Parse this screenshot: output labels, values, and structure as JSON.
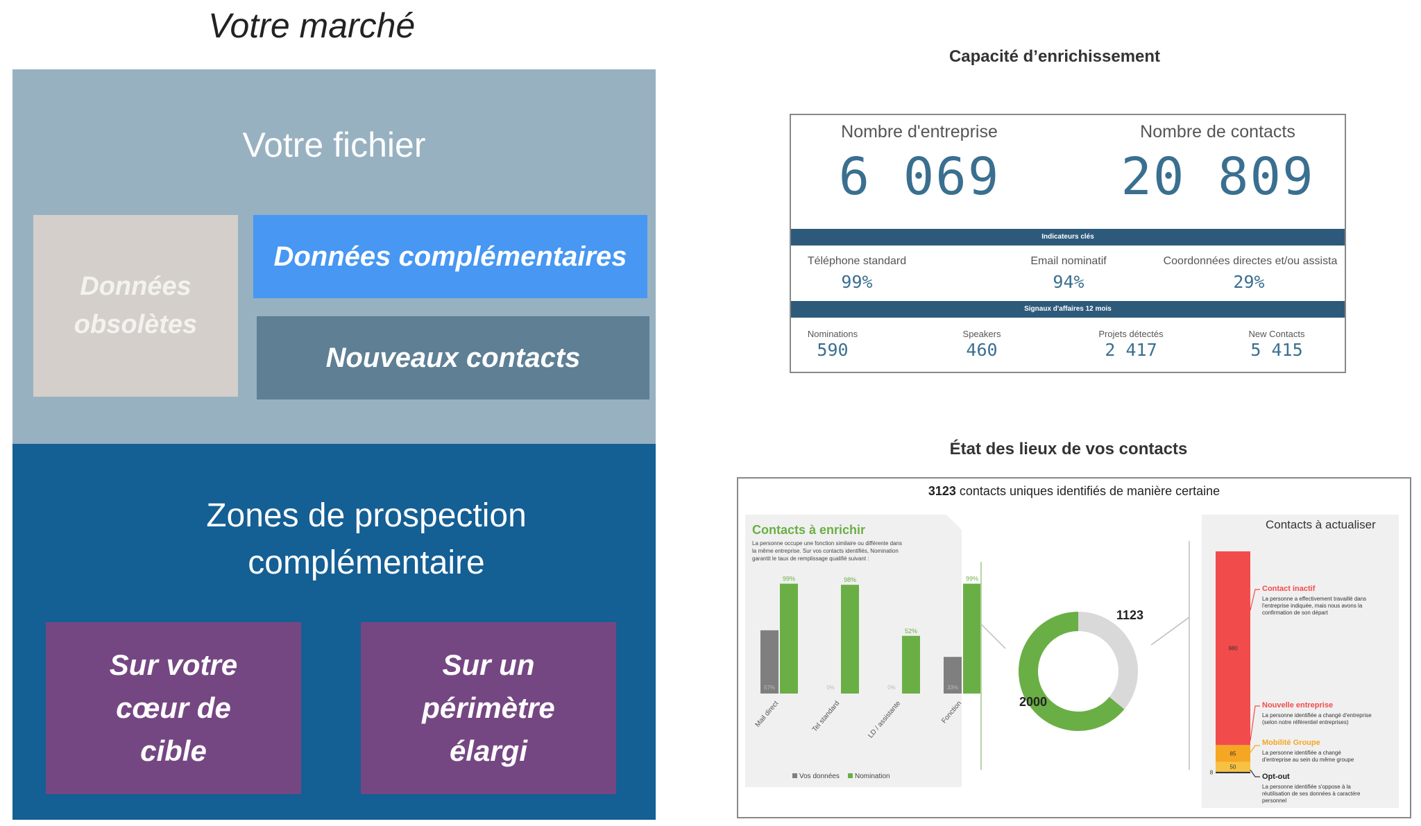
{
  "market": {
    "title": "Votre marché",
    "file_title": "Votre fichier",
    "obsolete_line1": "Données",
    "obsolete_line2": "obsolètes",
    "complementary": "Données complémentaires",
    "new_contacts": "Nouveaux contacts",
    "prospect_line1": "Zones de prospection",
    "prospect_line2": "complémentaire",
    "target_core": [
      "Sur votre",
      "cœur de",
      "cible"
    ],
    "target_wide": [
      "Sur un",
      "périmètre",
      "élargi"
    ]
  },
  "enrichment": {
    "title": "Capacité d’enrichissement",
    "companies_label": "Nombre d'entreprise",
    "companies_value": "6 069",
    "contacts_label": "Nombre de contacts",
    "contacts_value": "20 809",
    "indicators_band": "Indicateurs clés",
    "indicators": [
      {
        "label": "Téléphone standard",
        "value": "99%"
      },
      {
        "label": "Email nominatif",
        "value": "94%"
      },
      {
        "label": "Coordonnées directes et/ou assista",
        "value": "29%"
      }
    ],
    "signals_band": "Signaux d'affaires 12 mois",
    "signals": [
      {
        "label": "Nominations",
        "value": "590"
      },
      {
        "label": "Speakers",
        "value": "460"
      },
      {
        "label": "Projets détectés",
        "value": "2 417"
      },
      {
        "label": "New Contacts",
        "value": "5 415"
      }
    ]
  },
  "state": {
    "title": "État des lieux de vos contacts",
    "unique_count": "3123",
    "unique_text": "contacts uniques identifiés de manière certaine",
    "enrich_panel": {
      "title": "Contacts à enrichir",
      "description": [
        "La personne occupe une fonction similaire ou différente dans",
        "la même entreprise. Sur vos contacts identifiés, Nomination",
        "garantit le taux de remplissage qualifié suivant :"
      ],
      "legend_yours": "Vos données",
      "legend_nomination": "Nomination"
    },
    "update_panel": {
      "title": "Contacts à actualiser",
      "inactive_title": "Contact inactif",
      "inactive_text": [
        "La personne a effectivement travaillé dans",
        "l'entreprise indiquée, mais nous avons la",
        "confirmation de son départ"
      ],
      "new_company_title": "Nouvelle entreprise",
      "new_company_text": [
        "La personne identifiée a changé d'entreprise",
        "(selon notre référentiel entreprises)"
      ],
      "mobility_title": "Mobilité Groupe",
      "mobility_text": [
        "La personne identifiée a changé",
        "d'entreprise au sein du même groupe"
      ],
      "optout_title": "Opt-out",
      "optout_text": [
        "La personne identifiée s'oppose à la",
        "réutilisation de ses données à caractère",
        "personnel"
      ]
    }
  },
  "colors": {
    "file_zone": "#97b1c1",
    "prospect_zone": "#145f94",
    "purple": "#754782",
    "blue": "#4797f3",
    "green": "#6aaf45",
    "grey": "#7f7f7f",
    "red": "#f24b4b",
    "orange": "#f5a623",
    "band": "#2d5a7b"
  },
  "chart_data": [
    {
      "type": "bar",
      "title": "Contacts à enrichir",
      "categories": [
        "Mail direct",
        "Tel standard",
        "LD / assistante",
        "Fonction"
      ],
      "series": [
        {
          "name": "Vos données",
          "values": [
            57,
            0,
            0,
            33
          ]
        },
        {
          "name": "Nomination",
          "values": [
            99,
            98,
            52,
            99
          ]
        }
      ],
      "ylim": [
        0,
        100
      ]
    },
    {
      "type": "pie",
      "title": "3123 contacts uniques identifiés de manière certaine",
      "labels": [
        "Contacts à enrichir",
        "Contacts à actualiser"
      ],
      "values": [
        2000,
        1123
      ],
      "value_labels": [
        "2000",
        "1123"
      ]
    },
    {
      "type": "bar",
      "title": "Contacts à actualiser",
      "categories": [
        "Contacts à actualiser"
      ],
      "series": [
        {
          "name": "Contact inactif",
          "values": [
            980
          ]
        },
        {
          "name": "Nouvelle entreprise",
          "values": [
            85
          ]
        },
        {
          "name": "Mobilité Groupe",
          "values": [
            50
          ]
        },
        {
          "name": "Opt-out",
          "values": [
            8
          ]
        }
      ],
      "value_labels": [
        "980",
        "85",
        "50",
        "8"
      ]
    }
  ]
}
